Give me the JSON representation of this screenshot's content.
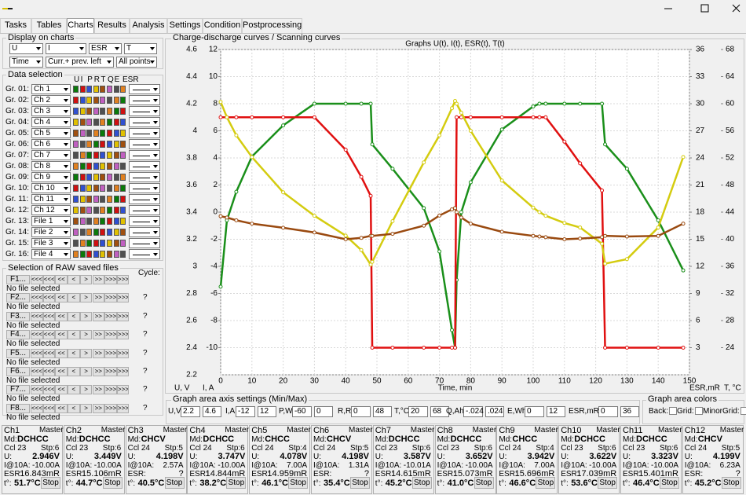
{
  "window": {
    "tabs": [
      "Tasks",
      "Tables",
      "Charts",
      "Results",
      "Analysis",
      "Settings",
      "Condition",
      "Postprocessing"
    ]
  },
  "display": {
    "title": "Display on charts",
    "selects": [
      "U",
      "I",
      "ESR",
      "T",
      "Time",
      "Curr.+ prev. left",
      "All points"
    ]
  },
  "data_selection": {
    "title": "Data selection",
    "columns": [
      "U",
      "I",
      "P",
      "R",
      "T",
      "Q",
      "E",
      "ESR"
    ],
    "rows": [
      {
        "group": "Gr. 01:",
        "source": "Ch 1"
      },
      {
        "group": "Gr. 02:",
        "source": "Ch 2"
      },
      {
        "group": "Gr. 03:",
        "source": "Ch 3"
      },
      {
        "group": "Gr. 04:",
        "source": "Ch 4"
      },
      {
        "group": "Gr. 05:",
        "source": "Ch 5"
      },
      {
        "group": "Gr. 06:",
        "source": "Ch 6"
      },
      {
        "group": "Gr. 07:",
        "source": "Ch 7"
      },
      {
        "group": "Gr. 08:",
        "source": "Ch 8"
      },
      {
        "group": "Gr. 09:",
        "source": "Ch 9"
      },
      {
        "group": "Gr. 10:",
        "source": "Ch 10"
      },
      {
        "group": "Gr. 11:",
        "source": "Ch 11"
      },
      {
        "group": "Gr. 12:",
        "source": "Ch 12"
      },
      {
        "group": "Gr. 13:",
        "source": "File 1"
      },
      {
        "group": "Gr. 14:",
        "source": "File 2"
      },
      {
        "group": "Gr. 15:",
        "source": "File 3"
      },
      {
        "group": "Gr. 16:",
        "source": "File 4"
      }
    ]
  },
  "raw_files": {
    "title": "Selection of RAW saved files",
    "cycle_label": "Cycle:",
    "nav": [
      "<<<<",
      "<<<",
      "<<",
      "<",
      ">",
      ">>",
      ">>>",
      ">>>>"
    ],
    "files": [
      {
        "button": "F1...",
        "status": "No file selected"
      },
      {
        "button": "F2...",
        "status": "No file selected",
        "cycle": "?"
      },
      {
        "button": "F3...",
        "status": "No file selected",
        "cycle": "?"
      },
      {
        "button": "F4...",
        "status": "No file selected",
        "cycle": "?"
      },
      {
        "button": "F5...",
        "status": "No file selected",
        "cycle": "?"
      },
      {
        "button": "F6...",
        "status": "No file selected",
        "cycle": "?"
      },
      {
        "button": "F7...",
        "status": "No file selected",
        "cycle": "?"
      },
      {
        "button": "F8...",
        "status": "No file selected",
        "cycle": "?"
      }
    ]
  },
  "chart_data": {
    "type": "line",
    "panel_title": "Charge-discharge curves / Scanning curves",
    "title": "Graphs U(t), I(t), ESR(t), T(t)",
    "xlabel": "Time, min",
    "ylabel": "U, V",
    "y2label": "I, A",
    "y3label": "ESR,mR",
    "y4label": "T, °C",
    "grid": true,
    "xlim": [
      0,
      150
    ],
    "xticks": [
      0,
      10,
      20,
      30,
      40,
      50,
      60,
      70,
      80,
      90,
      100,
      110,
      120,
      130,
      140,
      150
    ],
    "ylim": [
      2.2,
      4.6
    ],
    "yticks": [
      2.2,
      2.4,
      2.6,
      2.8,
      3,
      3.2,
      3.4,
      3.6,
      3.8,
      4,
      4.2,
      4.4,
      4.6
    ],
    "y2lim": [
      -12,
      12
    ],
    "y2ticks": [
      -10,
      -8,
      -6,
      -4,
      -2,
      0,
      2,
      4,
      6,
      8,
      10,
      12
    ],
    "y3lim": [
      0,
      36
    ],
    "y3ticks": [
      3,
      6,
      9,
      12,
      15,
      18,
      21,
      24,
      27,
      30,
      33,
      36
    ],
    "y4lim": [
      20,
      68
    ],
    "y4ticks": [
      24,
      28,
      32,
      36,
      40,
      44,
      48,
      52,
      56,
      60,
      64,
      68
    ],
    "x": [
      0,
      2,
      5,
      10,
      20,
      30,
      40,
      45,
      48,
      48.5,
      55,
      65,
      70,
      74,
      75,
      75.5,
      77,
      80,
      90,
      100,
      102,
      104,
      110,
      115,
      122,
      123,
      130,
      140,
      148
    ],
    "series": [
      {
        "axis": "y",
        "color": "#1a8f1a",
        "values": [
          2.85,
          3.34,
          3.55,
          3.81,
          4.04,
          4.2,
          4.2,
          4.2,
          4.2,
          3.9,
          3.72,
          3.43,
          3.11,
          2.53,
          2.4,
          2.9,
          3.4,
          3.62,
          4.01,
          4.18,
          4.2,
          4.2,
          4.2,
          4.2,
          4.2,
          3.9,
          3.72,
          3.34,
          2.97
        ]
      },
      {
        "axis": "y2",
        "color": "#e01010",
        "values": [
          7,
          7,
          7,
          7,
          7,
          7,
          4.6,
          2.6,
          1.2,
          -10,
          -10,
          -10,
          -10,
          -10,
          -10,
          7,
          7,
          7,
          7,
          7,
          7,
          7,
          5.2,
          3.6,
          1.6,
          -10,
          -10,
          -10,
          -10
        ]
      },
      {
        "axis": "y3",
        "color": "#d4cc10",
        "values": [
          30.2,
          28.5,
          26.5,
          24.1,
          20.2,
          17.6,
          15.4,
          13.8,
          12.2,
          12.5,
          17,
          23.5,
          26.5,
          29.5,
          30.3,
          30,
          29,
          27,
          21.5,
          18.5,
          18,
          17.6,
          16.8,
          16.3,
          14.5,
          12.3,
          12.8,
          16.3,
          24.1
        ]
      },
      {
        "axis": "y4",
        "color": "#9a4a10",
        "values": [
          43.4,
          43.2,
          42.8,
          42.3,
          41.7,
          41,
          40,
          40.2,
          40.5,
          40.5,
          40.8,
          42,
          43.5,
          44.4,
          44.6,
          44,
          43.2,
          42.3,
          41.1,
          40.5,
          40.4,
          40.3,
          40,
          40.1,
          40.3,
          40.5,
          40.4,
          40.5,
          42.3
        ]
      }
    ]
  },
  "axis_settings": {
    "title": "Graph area axis settings (Min/Max)",
    "fields": [
      {
        "label": "U,V",
        "min": "2.2",
        "max": "4.6"
      },
      {
        "label": "I,A",
        "min": "-12",
        "max": "12"
      },
      {
        "label": "P,W",
        "min": "-60",
        "max": "0"
      },
      {
        "label": "R,R",
        "min": "0",
        "max": "48"
      },
      {
        "label": "T,°C",
        "min": "20",
        "max": "68"
      },
      {
        "label": "Q,Ah",
        "min": "-.024",
        "max": ".024"
      },
      {
        "label": "E,Wh",
        "min": "0",
        "max": "12"
      },
      {
        "label": "ESR,mR",
        "min": "0",
        "max": "36"
      }
    ]
  },
  "area_colors": {
    "title": "Graph area colors",
    "items": [
      "Back:",
      "Grid:",
      "MinorGrid:"
    ]
  },
  "channels": [
    {
      "name": "Ch1",
      "role": "Master",
      "mode_label": "Md:",
      "mode": "DCHCC",
      "cycle": "Ccl 23",
      "step": "Stp:6",
      "u_label": "U:",
      "u": "2.946V",
      "i_label": "I@10A:",
      "i": "-10.00A",
      "esr_label": "ESR:",
      "esr": "16.843mR",
      "t_label": "t°:",
      "t": "51.7°C",
      "button": "Stop"
    },
    {
      "name": "Ch2",
      "role": "Master",
      "mode_label": "Md:",
      "mode": "DCHCC",
      "cycle": "Ccl 23",
      "step": "Stp:6",
      "u_label": "U:",
      "u": "3.449V",
      "i_label": "I@10A:",
      "i": "-10.00A",
      "esr_label": "ESR:",
      "esr": "15.106mR",
      "t_label": "t°:",
      "t": "44.7°C",
      "button": "Stop"
    },
    {
      "name": "Ch3",
      "role": "Master",
      "mode_label": "Md:",
      "mode": "CHCV",
      "cycle": "Ccl 24",
      "step": "Stp:5",
      "u_label": "U:",
      "u": "4.198V",
      "i_label": "I@10A:",
      "i": "2.57A",
      "esr_label": "ESR:",
      "esr": "?",
      "t_label": "t°:",
      "t": "40.5°C",
      "button": "Stop"
    },
    {
      "name": "Ch4",
      "role": "Master",
      "mode_label": "Md:",
      "mode": "DCHCC",
      "cycle": "Ccl 24",
      "step": "Stp:6",
      "u_label": "U:",
      "u": "3.747V",
      "i_label": "I@10A:",
      "i": "-10.00A",
      "esr_label": "ESR:",
      "esr": "14.844mR",
      "t_label": "t°:",
      "t": "38.2°C",
      "button": "Stop"
    },
    {
      "name": "Ch5",
      "role": "Master",
      "mode_label": "Md:",
      "mode": "CHCC",
      "cycle": "Ccl 24",
      "step": "Stp:4",
      "u_label": "U:",
      "u": "4.078V",
      "i_label": "I@10A:",
      "i": "7.00A",
      "esr_label": "ESR:",
      "esr": "14.959mR",
      "t_label": "t°:",
      "t": "46.1°C",
      "button": "Stop"
    },
    {
      "name": "Ch6",
      "role": "Master",
      "mode_label": "Md:",
      "mode": "CHCV",
      "cycle": "Ccl 24",
      "step": "Stp:5",
      "u_label": "U:",
      "u": "4.198V",
      "i_label": "I@10A:",
      "i": "1.31A",
      "esr_label": "ESR:",
      "esr": "?",
      "t_label": "t°:",
      "t": "35.4°C",
      "button": "Stop"
    },
    {
      "name": "Ch7",
      "role": "Master",
      "mode_label": "Md:",
      "mode": "DCHCC",
      "cycle": "Ccl 23",
      "step": "Stp:6",
      "u_label": "U:",
      "u": "3.587V",
      "i_label": "I@10A:",
      "i": "-10.01A",
      "esr_label": "ESR:",
      "esr": "14.615mR",
      "t_label": "t°:",
      "t": "45.2°C",
      "button": "Stop"
    },
    {
      "name": "Ch8",
      "role": "Master",
      "mode_label": "Md:",
      "mode": "DCHCC",
      "cycle": "Ccl 23",
      "step": "Stp:6",
      "u_label": "U:",
      "u": "3.652V",
      "i_label": "I@10A:",
      "i": "-10.00A",
      "esr_label": "ESR:",
      "esr": "15.073mR",
      "t_label": "t°:",
      "t": "41.0°C",
      "button": "Stop"
    },
    {
      "name": "Ch9",
      "role": "Master",
      "mode_label": "Md:",
      "mode": "CHCC",
      "cycle": "Ccl 24",
      "step": "Stp:4",
      "u_label": "U:",
      "u": "3.942V",
      "i_label": "I@10A:",
      "i": "7.00A",
      "esr_label": "ESR:",
      "esr": "15.696mR",
      "t_label": "t°:",
      "t": "46.6°C",
      "button": "Stop"
    },
    {
      "name": "Ch10",
      "role": "Master",
      "mode_label": "Md:",
      "mode": "DCHCC",
      "cycle": "Ccl 23",
      "step": "Stp:6",
      "u_label": "U:",
      "u": "3.622V",
      "i_label": "I@10A:",
      "i": "-10.00A",
      "esr_label": "ESR:",
      "esr": "17.039mR",
      "t_label": "t°:",
      "t": "53.6°C",
      "button": "Stop"
    },
    {
      "name": "Ch11",
      "role": "Master",
      "mode_label": "Md:",
      "mode": "DCHCC",
      "cycle": "Ccl 23",
      "step": "Stp:6",
      "u_label": "U:",
      "u": "3.323V",
      "i_label": "I@10A:",
      "i": "-10.00A",
      "esr_label": "ESR:",
      "esr": "15.401mR",
      "t_label": "t°:",
      "t": "46.4°C",
      "button": "Stop"
    },
    {
      "name": "Ch12",
      "role": "Master",
      "mode_label": "Md:",
      "mode": "CHCV",
      "cycle": "Ccl 24",
      "step": "Stp:5",
      "u_label": "U:",
      "u": "4.199V",
      "i_label": "I@10A:",
      "i": "6.23A",
      "esr_label": "ESR:",
      "esr": "?",
      "t_label": "t°:",
      "t": "45.2°C",
      "button": "Stop"
    }
  ]
}
